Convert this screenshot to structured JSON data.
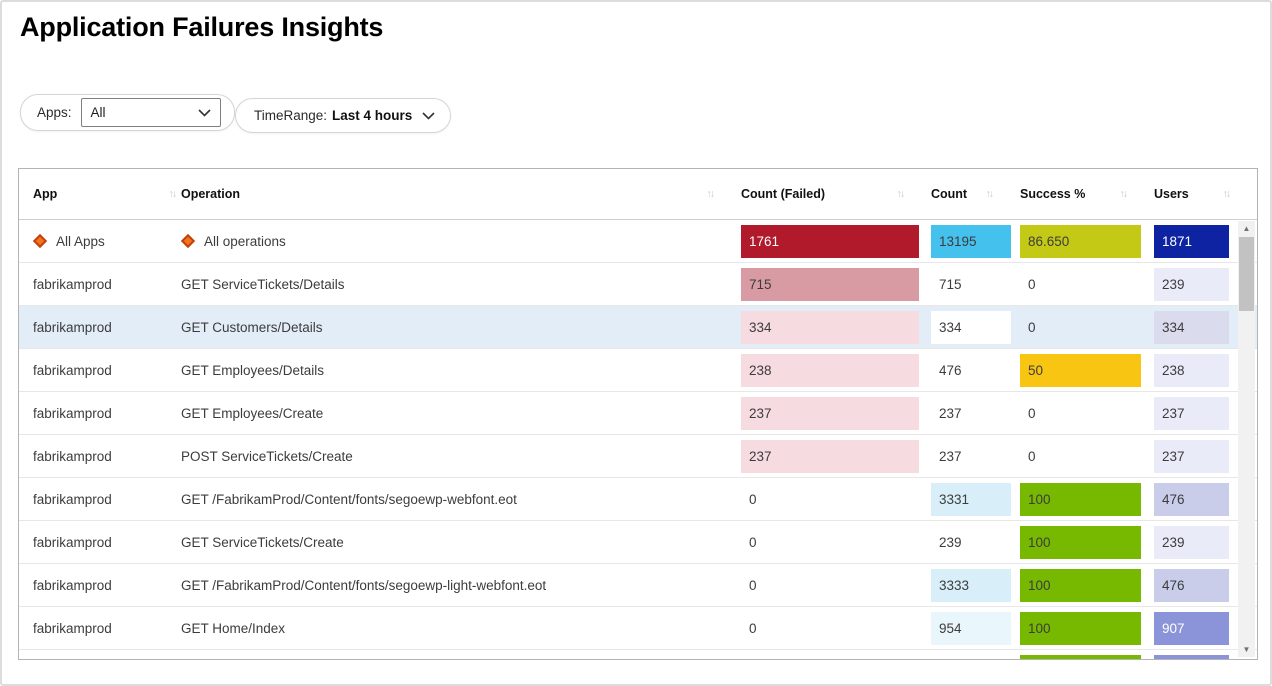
{
  "page": {
    "title": "Application Failures Insights"
  },
  "icons": {
    "sort": "↑↓",
    "scroll_up": "▲",
    "scroll_down": "▼"
  },
  "filters": {
    "apps_label": "Apps:",
    "apps_value": "All",
    "timerange_label": "TimeRange:",
    "timerange_value": "Last 4 hours"
  },
  "colors": {
    "failed_strong": "#b11a2b",
    "failed_medium": "#d99ba3",
    "failed_light": "#f6dce0",
    "count_strong": "#45c1ee",
    "count_pale": "#d8effa",
    "count_very_pale": "#e9f6fc",
    "success_olive": "#c3c914",
    "success_gold": "#f8c513",
    "success_green": "#77b900",
    "users_navy": "#0d23a1",
    "users_mid": "#8b94d8",
    "users_light": "#c9cdea",
    "users_lighter": "#dadcee",
    "users_pale": "#e9ecf8"
  },
  "table": {
    "columns": [
      "App",
      "Operation",
      "Count (Failed)",
      "Count",
      "Success %",
      "Users"
    ],
    "rows": [
      {
        "app": "All Apps",
        "operation": "All operations",
        "all": true,
        "failed": {
          "t": "1761",
          "bg": "#b11a2b",
          "fg": "#ffffff"
        },
        "count": {
          "t": "13195",
          "bg": "#45c1ee"
        },
        "success": {
          "t": "86.650",
          "bg": "#c3c914"
        },
        "users": {
          "t": "1871",
          "bg": "#0d23a1",
          "fg": "#ffffff"
        }
      },
      {
        "app": "fabrikamprod",
        "operation": "GET ServiceTickets/Details",
        "failed": {
          "t": "715",
          "bg": "#d99ba3"
        },
        "count": {
          "t": "715"
        },
        "success": {
          "t": "0"
        },
        "users": {
          "t": "239",
          "bg": "#e9ecf8"
        }
      },
      {
        "app": "fabrikamprod",
        "operation": "GET Customers/Details",
        "selected": true,
        "failed": {
          "t": "334",
          "bg": "#f6dce0"
        },
        "count": {
          "t": "334",
          "bg": "#ffffff"
        },
        "success": {
          "t": "0"
        },
        "users": {
          "t": "334",
          "bg": "#dadcee"
        }
      },
      {
        "app": "fabrikamprod",
        "operation": "GET Employees/Details",
        "failed": {
          "t": "238",
          "bg": "#f6dce0"
        },
        "count": {
          "t": "476"
        },
        "success": {
          "t": "50",
          "bg": "#f8c513"
        },
        "users": {
          "t": "238",
          "bg": "#e9ecf8"
        }
      },
      {
        "app": "fabrikamprod",
        "operation": "GET Employees/Create",
        "failed": {
          "t": "237",
          "bg": "#f6dce0"
        },
        "count": {
          "t": "237"
        },
        "success": {
          "t": "0"
        },
        "users": {
          "t": "237",
          "bg": "#e9ecf8"
        }
      },
      {
        "app": "fabrikamprod",
        "operation": "POST ServiceTickets/Create",
        "failed": {
          "t": "237",
          "bg": "#f6dce0"
        },
        "count": {
          "t": "237"
        },
        "success": {
          "t": "0"
        },
        "users": {
          "t": "237",
          "bg": "#e9ecf8"
        }
      },
      {
        "app": "fabrikamprod",
        "operation": "GET /FabrikamProd/Content/fonts/segoewp-webfont.eot",
        "failed": {
          "t": "0"
        },
        "count": {
          "t": "3331",
          "bg": "#d8effa"
        },
        "success": {
          "t": "100",
          "bg": "#77b900"
        },
        "users": {
          "t": "476",
          "bg": "#c9cdea"
        }
      },
      {
        "app": "fabrikamprod",
        "operation": "GET ServiceTickets/Create",
        "failed": {
          "t": "0"
        },
        "count": {
          "t": "239"
        },
        "success": {
          "t": "100",
          "bg": "#77b900"
        },
        "users": {
          "t": "239",
          "bg": "#e9ecf8"
        }
      },
      {
        "app": "fabrikamprod",
        "operation": "GET /FabrikamProd/Content/fonts/segoewp-light-webfont.eot",
        "failed": {
          "t": "0"
        },
        "count": {
          "t": "3333",
          "bg": "#d8effa"
        },
        "success": {
          "t": "100",
          "bg": "#77b900"
        },
        "users": {
          "t": "476",
          "bg": "#c9cdea"
        }
      },
      {
        "app": "fabrikamprod",
        "operation": "GET Home/Index",
        "failed": {
          "t": "0"
        },
        "count": {
          "t": "954",
          "bg": "#e9f6fc"
        },
        "success": {
          "t": "100",
          "bg": "#77b900"
        },
        "users": {
          "t": "907",
          "bg": "#8b94d8",
          "fg": "#ffffff"
        }
      },
      {
        "app": "",
        "operation": "",
        "failed": {
          "t": ""
        },
        "count": {
          "t": ""
        },
        "success": {
          "t": "",
          "bg": "#77b900"
        },
        "users": {
          "t": "",
          "bg": "#8b94d8"
        }
      }
    ]
  }
}
